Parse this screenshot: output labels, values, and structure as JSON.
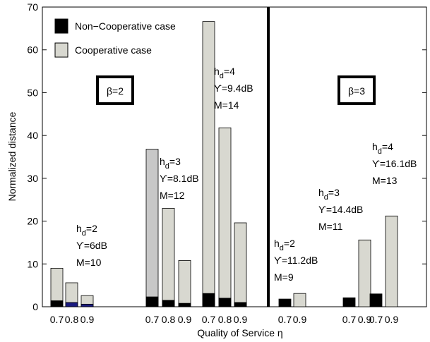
{
  "chart_data": {
    "type": "bar",
    "xlabel": "Quality of Service η",
    "ylabel": "Normalized distance",
    "ylim": [
      0,
      70
    ],
    "yticks": [
      0,
      10,
      20,
      30,
      40,
      50,
      60,
      70
    ],
    "grid": false,
    "legend": {
      "placement": "top-left",
      "entries": [
        {
          "label": "Non−Cooperative case",
          "color": "#000000"
        },
        {
          "label": "Cooperative case",
          "color": "#d8d8d0"
        }
      ]
    },
    "series": [
      {
        "name": "Non−Cooperative case"
      },
      {
        "name": "Cooperative case"
      }
    ],
    "panels": [
      {
        "label": "β=2",
        "groups": [
          {
            "categories": [
              "0.7",
              "0.8",
              "0.9"
            ],
            "cooperative": [
              9.0,
              5.6,
              2.6
            ],
            "non_cooperative": [
              1.4,
              1.0,
              0.6
            ],
            "annotation": [
              "h_d=2",
              "ϒ=6dB",
              "M=10"
            ]
          },
          {
            "categories": [
              "0.7",
              "0.8",
              "0.9"
            ],
            "cooperative": [
              36.8,
              23.0,
              10.8
            ],
            "non_cooperative": [
              2.3,
              1.5,
              0.8
            ],
            "annotation": [
              "h_d=3",
              "ϒ=8.1dB",
              "M=12"
            ]
          },
          {
            "categories": [
              "0.7",
              "0.8",
              "0.9"
            ],
            "cooperative": [
              66.6,
              41.8,
              19.6
            ],
            "non_cooperative": [
              3.1,
              2.0,
              1.0
            ],
            "annotation": [
              "h_d=4",
              "ϒ=9.4dB",
              "M=14"
            ]
          }
        ]
      },
      {
        "label": "β=3",
        "groups": [
          {
            "categories": [
              "0.7",
              "0.9"
            ],
            "cooperative": [
              null,
              3.1
            ],
            "non_cooperative": [
              1.8,
              null
            ],
            "annotation": [
              "h_d=2",
              "ϒ=11.2dB",
              "M=9"
            ]
          },
          {
            "categories": [
              "0.7",
              "0.9"
            ],
            "cooperative": [
              null,
              15.6
            ],
            "non_cooperative": [
              2.1,
              null
            ],
            "annotation": [
              "h_d=3",
              "ϒ=14.4dB",
              "M=11"
            ]
          },
          {
            "categories": [
              "0.7",
              "0.9"
            ],
            "cooperative": [
              null,
              21.2
            ],
            "non_cooperative": [
              3.0,
              null
            ],
            "annotation": [
              "h_d=4",
              "ϒ=16.1dB",
              "M=13"
            ]
          }
        ]
      }
    ],
    "colors": {
      "cooperative": "#d8d8d0",
      "cooperative_tall": "#c8c8c8",
      "non_cooperative": "#000000",
      "non_cooperative_accent": "#1a1a80"
    }
  }
}
